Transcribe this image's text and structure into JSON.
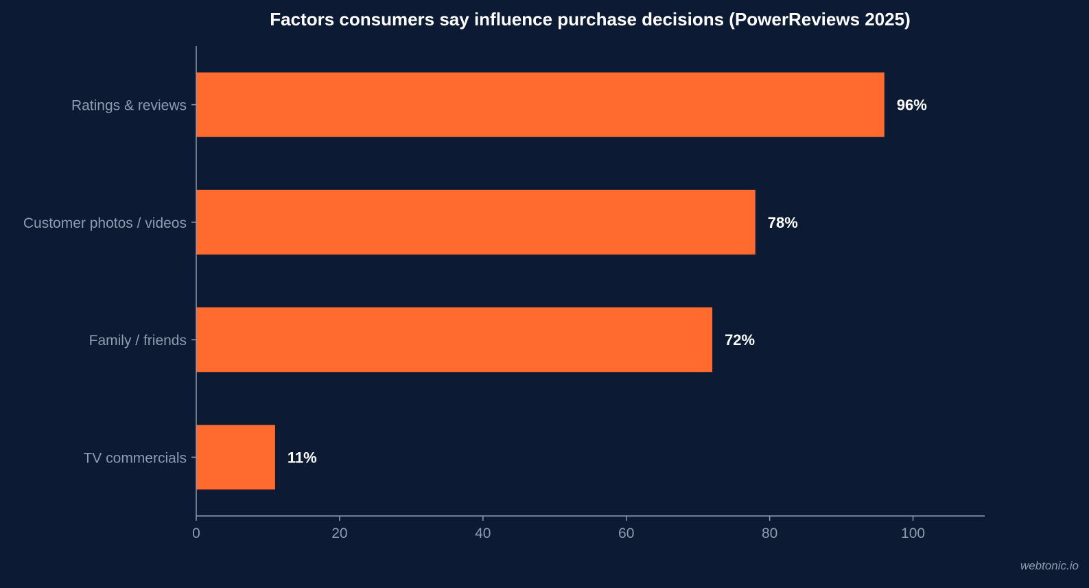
{
  "chart_data": {
    "type": "bar",
    "orientation": "horizontal",
    "title": "Factors consumers say influence purchase decisions (PowerReviews 2025)",
    "categories": [
      "Ratings & reviews",
      "Customer photos / videos",
      "Family / friends",
      "TV commercials"
    ],
    "values": [
      96,
      78,
      72,
      11
    ],
    "value_labels": [
      "96%",
      "78%",
      "72%",
      "11%"
    ],
    "xlim": [
      0,
      110
    ],
    "x_ticks": [
      0,
      20,
      40,
      60,
      80,
      100
    ],
    "grid": false,
    "legend": "none",
    "bar_color": "#ff6b2f"
  },
  "watermark": "webtonic.io",
  "colors": {
    "background": "#0c1b33",
    "bar": "#ff6b2f",
    "axis": "#8f9bb0",
    "text_muted": "#8f9bb0",
    "text_strong": "#ffffff"
  }
}
